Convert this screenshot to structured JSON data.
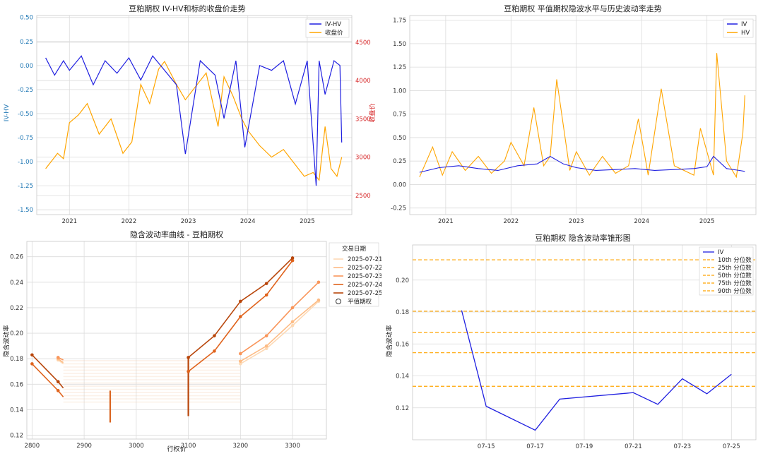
{
  "colors": {
    "iv": "#1f1fe0",
    "hv": "#ffa500",
    "close": "#ffa500",
    "ivhv": "#1f1fe0",
    "quantile": "#ffa500"
  },
  "chart_data": [
    {
      "type": "line",
      "title": "豆粕期权 IV-HV和标的收盘价走势",
      "ylabel": "IV-HV",
      "y2label": "收盘价",
      "xticks": [
        "2021",
        "2022",
        "2023",
        "2024",
        "2025"
      ],
      "ylim": [
        -1.55,
        0.52
      ],
      "yticks": [
        "0.50",
        "0.25",
        "0.00",
        "-0.25",
        "-0.50",
        "-0.75",
        "-1.00",
        "-1.25",
        "-1.50"
      ],
      "y2lim": [
        2250,
        4850
      ],
      "y2ticks": [
        "2500",
        "3000",
        "3500",
        "4000",
        "4500"
      ],
      "legend": [
        "IV-HV",
        "收盘价"
      ],
      "series": [
        {
          "name": "IV-HV",
          "x": [
            2020.6,
            2020.75,
            2020.9,
            2021.0,
            2021.2,
            2021.4,
            2021.6,
            2021.8,
            2022.0,
            2022.2,
            2022.4,
            2022.6,
            2022.8,
            2022.95,
            2023.2,
            2023.45,
            2023.6,
            2023.8,
            2023.95,
            2024.2,
            2024.4,
            2024.6,
            2024.8,
            2025.0,
            2025.15,
            2025.2,
            2025.3,
            2025.45,
            2025.55,
            2025.58
          ],
          "values": [
            0.08,
            -0.1,
            0.05,
            -0.05,
            0.1,
            -0.2,
            0.05,
            -0.08,
            0.08,
            -0.15,
            0.1,
            -0.05,
            -0.2,
            -0.92,
            0.05,
            -0.1,
            -0.55,
            0.05,
            -0.85,
            0.0,
            -0.05,
            0.05,
            -0.4,
            0.05,
            -1.25,
            0.05,
            -0.3,
            0.05,
            0.0,
            -0.8
          ]
        },
        {
          "name": "收盘价",
          "x": [
            2020.6,
            2020.7,
            2020.8,
            2020.9,
            2021.0,
            2021.15,
            2021.3,
            2021.5,
            2021.7,
            2021.9,
            2022.05,
            2022.2,
            2022.35,
            2022.5,
            2022.6,
            2022.8,
            2022.95,
            2023.1,
            2023.3,
            2023.5,
            2023.6,
            2023.75,
            2023.9,
            2024.0,
            2024.2,
            2024.4,
            2024.6,
            2024.8,
            2024.95,
            2025.1,
            2025.2,
            2025.3,
            2025.4,
            2025.5,
            2025.58
          ],
          "values": [
            2850,
            2950,
            3050,
            2980,
            3450,
            3550,
            3700,
            3300,
            3500,
            3050,
            3200,
            3950,
            3700,
            4150,
            4250,
            3950,
            3750,
            3900,
            4100,
            3400,
            4050,
            3800,
            3500,
            3350,
            3150,
            3000,
            3100,
            2900,
            2750,
            2800,
            2700,
            3400,
            2850,
            2750,
            3000
          ]
        }
      ]
    },
    {
      "type": "line",
      "title": "豆粕期权 平值期权隐波水平与历史波动率走势",
      "xticks": [
        "2021",
        "2022",
        "2023",
        "2024",
        "2025"
      ],
      "ylim": [
        -0.32,
        1.8
      ],
      "yticks": [
        "1.75",
        "1.50",
        "1.25",
        "1.00",
        "0.75",
        "0.50",
        "0.25",
        "0.00",
        "-0.25"
      ],
      "legend": [
        "IV",
        "HV"
      ],
      "series": [
        {
          "name": "IV",
          "x": [
            2020.6,
            2020.9,
            2021.2,
            2021.5,
            2021.8,
            2022.1,
            2022.4,
            2022.6,
            2022.8,
            2023.0,
            2023.3,
            2023.6,
            2023.9,
            2024.2,
            2024.5,
            2024.8,
            2025.0,
            2025.1,
            2025.3,
            2025.5,
            2025.58
          ],
          "values": [
            0.13,
            0.18,
            0.2,
            0.17,
            0.15,
            0.2,
            0.22,
            0.3,
            0.22,
            0.18,
            0.15,
            0.16,
            0.17,
            0.15,
            0.16,
            0.17,
            0.19,
            0.3,
            0.17,
            0.15,
            0.14
          ]
        },
        {
          "name": "HV",
          "x": [
            2020.6,
            2020.8,
            2020.95,
            2021.1,
            2021.3,
            2021.5,
            2021.7,
            2021.9,
            2022.0,
            2022.2,
            2022.35,
            2022.5,
            2022.6,
            2022.7,
            2022.9,
            2023.0,
            2023.2,
            2023.4,
            2023.6,
            2023.8,
            2023.95,
            2024.1,
            2024.3,
            2024.5,
            2024.8,
            2024.9,
            2025.0,
            2025.1,
            2025.15,
            2025.3,
            2025.45,
            2025.55,
            2025.58
          ],
          "values": [
            0.08,
            0.4,
            0.1,
            0.35,
            0.15,
            0.3,
            0.12,
            0.25,
            0.45,
            0.2,
            0.82,
            0.2,
            0.3,
            1.12,
            0.15,
            0.35,
            0.1,
            0.3,
            0.12,
            0.2,
            0.7,
            0.1,
            1.02,
            0.2,
            0.1,
            0.6,
            0.35,
            0.1,
            1.4,
            0.25,
            0.08,
            0.55,
            0.95
          ]
        }
      ]
    },
    {
      "type": "line",
      "title": "隐含波动率曲线 - 豆粕期权",
      "xlabel": "行权价",
      "ylabel": "隐含波动率",
      "xlim": [
        2790,
        3365
      ],
      "xticks": [
        "2800",
        "2900",
        "3000",
        "3100",
        "3200",
        "3300"
      ],
      "ylim": [
        0.117,
        0.272
      ],
      "yticks": [
        "0.26",
        "0.24",
        "0.22",
        "0.20",
        "0.18",
        "0.16",
        "0.14",
        "0.12"
      ],
      "legend_title": "交易日期",
      "legend": [
        "2025-07-21",
        "2025-07-22",
        "2025-07-23",
        "2025-07-24",
        "2025-07-25",
        "平值期权"
      ],
      "series": [
        {
          "name": "2025-07-21",
          "x": [
            2850,
            2860,
            3200,
            3250,
            3300,
            3350
          ],
          "values": [
            0.179,
            0.176,
            0.176,
            0.188,
            0.206,
            0.225
          ]
        },
        {
          "name": "2025-07-22",
          "x": [
            2850,
            2860,
            3200,
            3250,
            3300,
            3350
          ],
          "values": [
            0.18,
            0.177,
            0.178,
            0.19,
            0.209,
            0.226
          ]
        },
        {
          "name": "2025-07-23",
          "x": [
            2850,
            2860,
            3200,
            3250,
            3300,
            3350
          ],
          "values": [
            0.181,
            0.179,
            0.184,
            0.198,
            0.22,
            0.24
          ]
        },
        {
          "name": "2025-07-24",
          "x": [
            2800,
            2850,
            2860,
            3100,
            3150,
            3200,
            3250,
            3300
          ],
          "values": [
            0.176,
            0.155,
            0.15,
            0.17,
            0.186,
            0.213,
            0.23,
            0.257
          ]
        },
        {
          "name": "2025-07-25",
          "x": [
            2800,
            2850,
            2860,
            3100,
            3150,
            3200,
            3250,
            3300
          ],
          "values": [
            0.183,
            0.162,
            0.157,
            0.181,
            0.198,
            0.225,
            0.239,
            0.259
          ]
        }
      ]
    },
    {
      "type": "line",
      "title": "豆粕期权 隐含波动率锥形图",
      "ylabel": "隐含波动率",
      "xlim": [
        0,
        14
      ],
      "xticks": [
        "07-15",
        "07-17",
        "07-19",
        "07-21",
        "07-23",
        "07-25"
      ],
      "ylim": [
        0.1,
        0.222
      ],
      "yticks": [
        "0.20",
        "0.18",
        "0.16",
        "0.14",
        "0.12"
      ],
      "legend": [
        "IV",
        "10th 分位数",
        "25th 分位数",
        "50th 分位数",
        "75th 分位数",
        "90th 分位数"
      ],
      "quantiles": [
        0.1335,
        0.1545,
        0.1672,
        0.1805,
        0.2127
      ],
      "series": [
        {
          "name": "IV",
          "x": [
            "07-14",
            "07-15",
            "07-17",
            "07-18",
            "07-21",
            "07-22",
            "07-23",
            "07-24",
            "07-25"
          ],
          "values": [
            0.181,
            0.121,
            0.106,
            0.1255,
            0.1295,
            0.1222,
            0.1382,
            0.1288,
            0.141
          ]
        }
      ]
    }
  ]
}
